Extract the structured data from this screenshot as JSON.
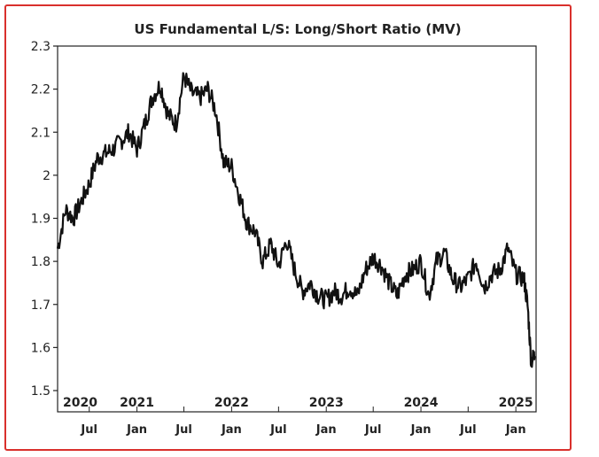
{
  "chart_data": {
    "type": "line",
    "title": "US Fundamental L/S: Long/Short Ratio (MV)",
    "xlabel": "",
    "ylabel": "",
    "ylim": [
      1.5,
      2.3
    ],
    "xlim": [
      "2020-03-01",
      "2025-03-20"
    ],
    "yticks": [
      "1.5",
      "1.6",
      "1.7",
      "1.8",
      "1.9",
      "2",
      "2.1",
      "2.2",
      "2.3"
    ],
    "year_labels": [
      {
        "label": "2020",
        "date": "2020-03-01"
      },
      {
        "label": "2021",
        "date": "2021-01-01"
      },
      {
        "label": "2022",
        "date": "2022-01-01"
      },
      {
        "label": "2023",
        "date": "2023-01-01"
      },
      {
        "label": "2024",
        "date": "2024-01-01"
      },
      {
        "label": "2025",
        "date": "2025-01-01"
      }
    ],
    "month_labels": [
      {
        "label": "Jul",
        "date": "2020-07-01"
      },
      {
        "label": "Jan",
        "date": "2021-01-01"
      },
      {
        "label": "Jul",
        "date": "2021-07-01"
      },
      {
        "label": "Jan",
        "date": "2022-01-01"
      },
      {
        "label": "Jul",
        "date": "2022-07-01"
      },
      {
        "label": "Jan",
        "date": "2023-01-01"
      },
      {
        "label": "Jul",
        "date": "2023-07-01"
      },
      {
        "label": "Jan",
        "date": "2024-01-01"
      },
      {
        "label": "Jul",
        "date": "2024-07-01"
      },
      {
        "label": "Jan",
        "date": "2025-01-01"
      }
    ],
    "grid": false,
    "line_color": "#111111",
    "series": [
      {
        "x": [
          "2020-03-01",
          "2020-04-01",
          "2020-05-01",
          "2020-06-01",
          "2020-07-01",
          "2020-08-01",
          "2020-09-01",
          "2020-10-01",
          "2020-11-01",
          "2020-12-01",
          "2021-01-01",
          "2021-02-01",
          "2021-03-01",
          "2021-04-01",
          "2021-05-01",
          "2021-06-01",
          "2021-07-01",
          "2021-08-01",
          "2021-09-01",
          "2021-10-01",
          "2021-11-01",
          "2021-12-01",
          "2022-01-01",
          "2022-02-01",
          "2022-03-01",
          "2022-04-01",
          "2022-05-01",
          "2022-06-01",
          "2022-07-01",
          "2022-08-01",
          "2022-09-01",
          "2022-10-01",
          "2022-11-01",
          "2022-12-01",
          "2023-01-01",
          "2023-02-01",
          "2023-03-01",
          "2023-04-01",
          "2023-05-01",
          "2023-06-01",
          "2023-07-01",
          "2023-08-01",
          "2023-09-01",
          "2023-10-01",
          "2023-11-01",
          "2023-12-01",
          "2024-01-01",
          "2024-02-01",
          "2024-03-01",
          "2024-04-01",
          "2024-05-01",
          "2024-06-01",
          "2024-07-01",
          "2024-08-01",
          "2024-09-01",
          "2024-10-01",
          "2024-11-01",
          "2024-12-01",
          "2025-01-01",
          "2025-02-01",
          "2025-02-15",
          "2025-03-01",
          "2025-03-15"
        ],
        "values": [
          1.83,
          1.92,
          1.9,
          1.94,
          1.98,
          2.04,
          2.05,
          2.06,
          2.08,
          2.1,
          2.06,
          2.12,
          2.18,
          2.21,
          2.14,
          2.12,
          2.23,
          2.19,
          2.18,
          2.2,
          2.15,
          2.03,
          2.02,
          1.95,
          1.89,
          1.87,
          1.8,
          1.84,
          1.79,
          1.85,
          1.78,
          1.73,
          1.75,
          1.72,
          1.71,
          1.73,
          1.72,
          1.74,
          1.72,
          1.78,
          1.81,
          1.79,
          1.75,
          1.72,
          1.77,
          1.78,
          1.8,
          1.72,
          1.8,
          1.82,
          1.76,
          1.74,
          1.76,
          1.8,
          1.74,
          1.77,
          1.78,
          1.83,
          1.77,
          1.76,
          1.7,
          1.57,
          1.58
        ]
      }
    ]
  }
}
